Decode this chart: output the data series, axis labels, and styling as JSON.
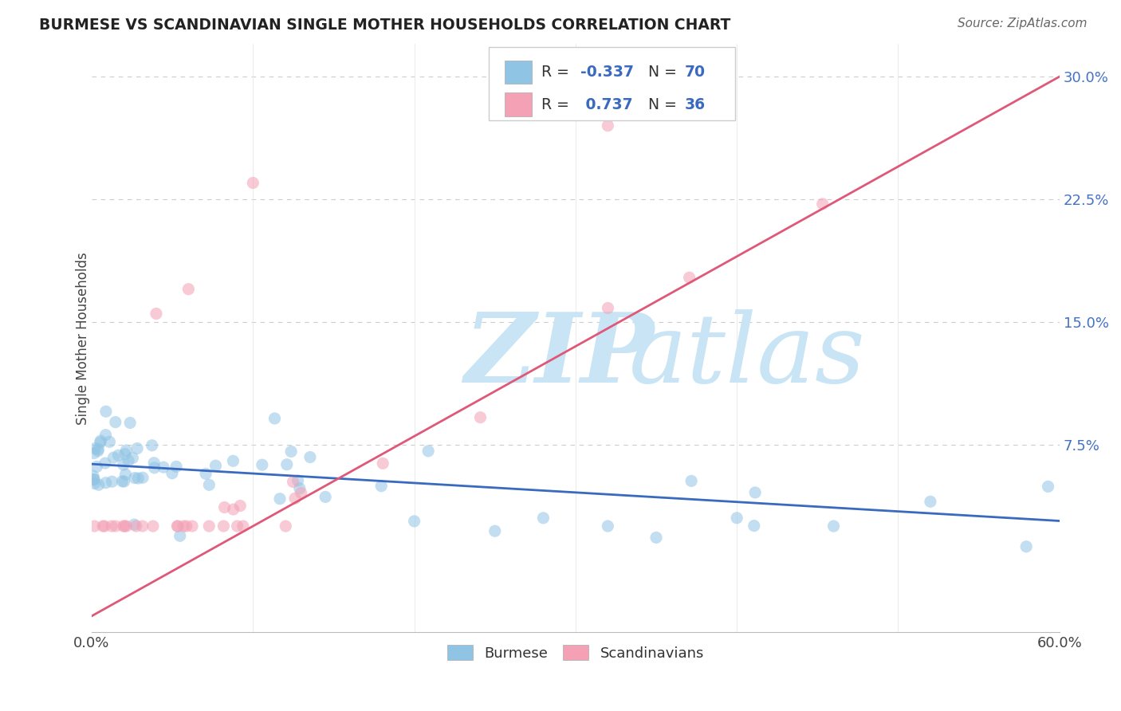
{
  "title": "BURMESE VS SCANDINAVIAN SINGLE MOTHER HOUSEHOLDS CORRELATION CHART",
  "source": "Source: ZipAtlas.com",
  "ylabel": "Single Mother Households",
  "ytick_labels": [
    "7.5%",
    "15.0%",
    "22.5%",
    "30.0%"
  ],
  "ytick_values": [
    0.075,
    0.15,
    0.225,
    0.3
  ],
  "xlim": [
    0.0,
    0.6
  ],
  "ylim": [
    -0.04,
    0.32
  ],
  "legend_r_burmese": "-0.337",
  "legend_n_burmese": "70",
  "legend_r_scand": "0.737",
  "legend_n_scand": "36",
  "burmese_color": "#90c4e4",
  "scand_color": "#f4a0b5",
  "burmese_line_color": "#3a6abf",
  "scand_line_color": "#e05878",
  "burmese_line_intercept": 0.063,
  "burmese_line_slope": -0.058,
  "scand_line_intercept": -0.03,
  "scand_line_slope": 0.55,
  "background_color": "#ffffff",
  "grid_color": "#cccccc",
  "title_color": "#222222",
  "source_color": "#666666",
  "ytick_color": "#4472c4",
  "watermark_color": "#c8e4f5"
}
